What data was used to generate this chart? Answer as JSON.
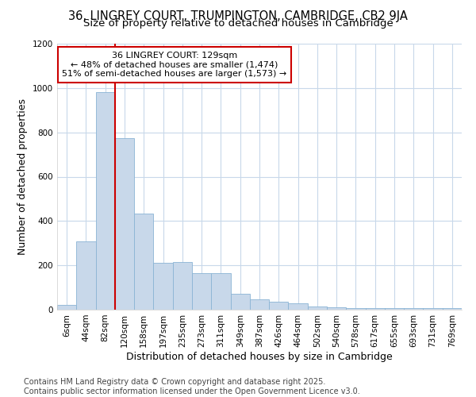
{
  "title_line1": "36, LINGREY COURT, TRUMPINGTON, CAMBRIDGE, CB2 9JA",
  "title_line2": "Size of property relative to detached houses in Cambridge",
  "xlabel": "Distribution of detached houses by size in Cambridge",
  "ylabel": "Number of detached properties",
  "bar_color": "#c8d8ea",
  "bar_edge_color": "#8ab4d4",
  "background_color": "#ffffff",
  "grid_color": "#c8d8ea",
  "vline_color": "#cc0000",
  "vline_x_index": 3,
  "categories": [
    "6sqm",
    "44sqm",
    "82sqm",
    "120sqm",
    "158sqm",
    "197sqm",
    "235sqm",
    "273sqm",
    "311sqm",
    "349sqm",
    "387sqm",
    "426sqm",
    "464sqm",
    "502sqm",
    "540sqm",
    "578sqm",
    "617sqm",
    "655sqm",
    "693sqm",
    "731sqm",
    "769sqm"
  ],
  "values": [
    22,
    308,
    980,
    775,
    435,
    213,
    215,
    163,
    163,
    70,
    47,
    35,
    28,
    15,
    10,
    8,
    6,
    6,
    6,
    6,
    8
  ],
  "annotation_title": "36 LINGREY COURT: 129sqm",
  "annotation_line1": "← 48% of detached houses are smaller (1,474)",
  "annotation_line2": "51% of semi-detached houses are larger (1,573) →",
  "annotation_box_color": "#ffffff",
  "annotation_border_color": "#cc0000",
  "ylim": [
    0,
    1200
  ],
  "yticks": [
    0,
    200,
    400,
    600,
    800,
    1000,
    1200
  ],
  "footer_line1": "Contains HM Land Registry data © Crown copyright and database right 2025.",
  "footer_line2": "Contains public sector information licensed under the Open Government Licence v3.0.",
  "title_fontsize": 10.5,
  "subtitle_fontsize": 9.5,
  "axis_label_fontsize": 9,
  "tick_fontsize": 7.5,
  "annotation_fontsize": 8,
  "footer_fontsize": 7
}
